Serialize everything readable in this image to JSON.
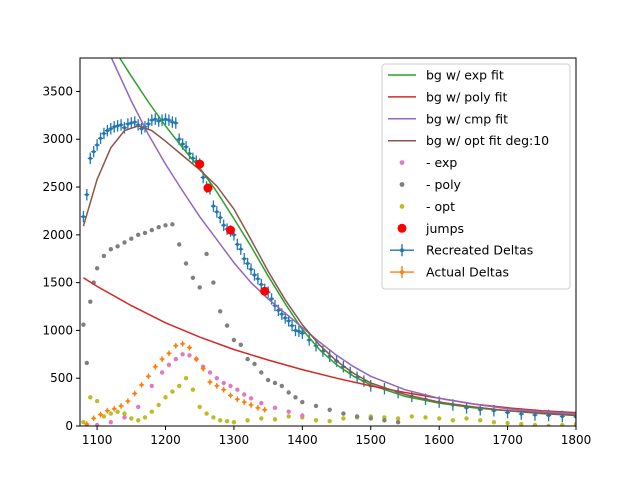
{
  "chart_data": {
    "type": "scatter",
    "title": "",
    "xlabel": "",
    "ylabel": "",
    "xlim": [
      1075,
      1800
    ],
    "ylim": [
      0,
      3850
    ],
    "xticks": [
      1100,
      1200,
      1300,
      1400,
      1500,
      1600,
      1700,
      1800
    ],
    "yticks": [
      0,
      500,
      1000,
      1500,
      2000,
      2500,
      3000,
      3500
    ],
    "grid": false,
    "legend_placement": "top-right",
    "colors": {
      "exp_fit": "#2ca02c",
      "poly_fit": "#d62728",
      "cmp_fit": "#9467bd",
      "opt_fit": "#8c564b",
      "exp_points": "#e377c2",
      "poly_points": "#7f7f7f",
      "opt_points": "#bcbd22",
      "jumps": "#ff0000",
      "recreated": "#1f77b4",
      "actual": "#ff7f0e"
    },
    "legend": [
      {
        "key": "exp_fit",
        "kind": "line",
        "label": "bg w/ exp fit"
      },
      {
        "key": "poly_fit",
        "kind": "line",
        "label": "bg w/ poly fit"
      },
      {
        "key": "cmp_fit",
        "kind": "line",
        "label": "bg w/ cmp fit"
      },
      {
        "key": "opt_fit",
        "kind": "line",
        "label": "bg w/ opt fit deg:10"
      },
      {
        "key": "exp_points",
        "kind": "dot",
        "label": "- exp"
      },
      {
        "key": "poly_points",
        "kind": "dot",
        "label": "- poly"
      },
      {
        "key": "opt_points",
        "kind": "dot",
        "label": "- opt"
      },
      {
        "key": "jumps",
        "kind": "bigdot",
        "label": "jumps"
      },
      {
        "key": "recreated",
        "kind": "errbar",
        "label": "Recreated Deltas"
      },
      {
        "key": "actual",
        "kind": "errbar",
        "label": "Actual Deltas"
      }
    ],
    "series": [
      {
        "key": "exp_fit",
        "type": "line",
        "x": [
          1133,
          1150,
          1175,
          1200,
          1225,
          1250,
          1275,
          1300,
          1325,
          1350,
          1375,
          1400,
          1425,
          1450,
          1475,
          1500,
          1550,
          1600,
          1650,
          1700,
          1750,
          1800
        ],
        "y": [
          3850,
          3660,
          3390,
          3140,
          2910,
          2700,
          2450,
          2170,
          1880,
          1570,
          1280,
          1010,
          800,
          640,
          520,
          430,
          310,
          240,
          190,
          160,
          140,
          125
        ]
      },
      {
        "key": "poly_fit",
        "type": "line",
        "x": [
          1080,
          1100,
          1150,
          1200,
          1250,
          1300,
          1350,
          1400,
          1450,
          1500,
          1550,
          1600,
          1650,
          1700,
          1750,
          1800
        ],
        "y": [
          1550,
          1460,
          1260,
          1080,
          930,
          800,
          690,
          590,
          500,
          420,
          350,
          290,
          230,
          190,
          160,
          140
        ]
      },
      {
        "key": "cmp_fit",
        "type": "line",
        "x": [
          1121,
          1150,
          1175,
          1200,
          1225,
          1250,
          1275,
          1300,
          1325,
          1350,
          1375,
          1400,
          1425,
          1450,
          1475,
          1500,
          1550,
          1600,
          1650,
          1700,
          1750,
          1800
        ],
        "y": [
          3850,
          3400,
          3050,
          2740,
          2460,
          2190,
          1950,
          1710,
          1500,
          1330,
          1180,
          1030,
          880,
          740,
          620,
          520,
          380,
          290,
          230,
          180,
          150,
          130
        ]
      },
      {
        "key": "opt_fit",
        "type": "line",
        "x": [
          1080,
          1100,
          1120,
          1140,
          1160,
          1180,
          1200,
          1225,
          1250,
          1275,
          1300,
          1325,
          1350,
          1375,
          1400,
          1425,
          1450,
          1475,
          1500,
          1550,
          1600,
          1650,
          1700,
          1750,
          1800
        ],
        "y": [
          2090,
          2580,
          2910,
          3090,
          3140,
          3090,
          2980,
          2830,
          2680,
          2510,
          2270,
          1950,
          1620,
          1320,
          1060,
          850,
          680,
          550,
          450,
          330,
          250,
          200,
          160,
          130,
          110
        ]
      },
      {
        "key": "recreated",
        "type": "errorbar",
        "x": [
          1080,
          1085,
          1090,
          1095,
          1100,
          1105,
          1110,
          1115,
          1120,
          1125,
          1130,
          1135,
          1140,
          1145,
          1150,
          1155,
          1160,
          1165,
          1170,
          1175,
          1180,
          1185,
          1190,
          1195,
          1200,
          1205,
          1210,
          1215,
          1220,
          1225,
          1230,
          1235,
          1240,
          1245,
          1250,
          1255,
          1260,
          1265,
          1270,
          1275,
          1280,
          1285,
          1290,
          1295,
          1300,
          1305,
          1310,
          1315,
          1320,
          1325,
          1330,
          1335,
          1340,
          1345,
          1350,
          1355,
          1360,
          1365,
          1370,
          1375,
          1380,
          1385,
          1390,
          1395,
          1400,
          1410,
          1420,
          1430,
          1440,
          1450,
          1460,
          1470,
          1480,
          1490,
          1500,
          1520,
          1540,
          1560,
          1580,
          1600,
          1620,
          1640,
          1660,
          1680,
          1700,
          1720,
          1740,
          1760,
          1780,
          1800
        ],
        "y": [
          2190,
          2420,
          2800,
          2870,
          2940,
          3010,
          3060,
          3090,
          3110,
          3130,
          3140,
          3150,
          3120,
          3160,
          3170,
          3180,
          3150,
          3110,
          3130,
          3160,
          3200,
          3210,
          3190,
          3200,
          3210,
          3200,
          3180,
          3170,
          3000,
          2950,
          2920,
          2850,
          2800,
          2770,
          2740,
          2600,
          2500,
          2480,
          2300,
          2240,
          2180,
          2100,
          2060,
          2040,
          2000,
          1900,
          1850,
          1750,
          1700,
          1640,
          1580,
          1540,
          1480,
          1430,
          1400,
          1330,
          1260,
          1210,
          1170,
          1130,
          1100,
          1050,
          1000,
          990,
          970,
          900,
          840,
          780,
          730,
          680,
          620,
          560,
          510,
          470,
          420,
          390,
          350,
          310,
          280,
          250,
          220,
          190,
          170,
          160,
          140,
          125,
          115,
          110,
          100,
          95
        ],
        "yerr": 60
      },
      {
        "key": "exp_points",
        "type": "scatter",
        "x": [
          1085,
          1100,
          1120,
          1140,
          1160,
          1180,
          1195,
          1205,
          1215,
          1225,
          1235,
          1245,
          1255,
          1265,
          1275,
          1285,
          1295,
          1305,
          1315,
          1325,
          1340,
          1360,
          1380,
          1400
        ],
        "y": [
          0,
          10,
          40,
          90,
          200,
          420,
          560,
          640,
          700,
          750,
          740,
          700,
          620,
          560,
          500,
          450,
          420,
          380,
          330,
          290,
          240,
          190,
          150,
          110
        ]
      },
      {
        "key": "poly_points",
        "type": "scatter",
        "x": [
          1080,
          1085,
          1090,
          1095,
          1100,
          1110,
          1120,
          1130,
          1140,
          1150,
          1160,
          1170,
          1180,
          1190,
          1200,
          1210,
          1220,
          1230,
          1240,
          1250,
          1260,
          1270,
          1280,
          1290,
          1300,
          1310,
          1320,
          1330,
          1340,
          1350,
          1360,
          1370,
          1380,
          1390,
          1400,
          1420,
          1440,
          1460,
          1480,
          1500,
          1520,
          1540
        ],
        "y": [
          1060,
          660,
          1300,
          1500,
          1650,
          1780,
          1850,
          1880,
          1920,
          1960,
          2000,
          2020,
          2050,
          2080,
          2100,
          2110,
          1900,
          1700,
          1550,
          1450,
          1800,
          1500,
          1200,
          1050,
          900,
          850,
          700,
          650,
          560,
          480,
          450,
          420,
          350,
          300,
          250,
          210,
          170,
          130,
          100,
          80,
          60,
          40
        ]
      },
      {
        "key": "opt_points",
        "type": "scatter",
        "x": [
          1080,
          1090,
          1100,
          1110,
          1120,
          1130,
          1140,
          1150,
          1160,
          1170,
          1180,
          1190,
          1200,
          1210,
          1220,
          1230,
          1240,
          1250,
          1260,
          1270,
          1280,
          1290,
          1300,
          1320,
          1340,
          1360,
          1380,
          1400,
          1420,
          1440,
          1460,
          1480,
          1500,
          1520,
          1540,
          1560,
          1580,
          1600,
          1620,
          1640,
          1660,
          1680,
          1700,
          1720,
          1740,
          1760,
          1780,
          1800
        ],
        "y": [
          40,
          300,
          260,
          100,
          130,
          150,
          130,
          80,
          60,
          90,
          150,
          220,
          300,
          360,
          420,
          500,
          380,
          200,
          130,
          90,
          60,
          50,
          40,
          60,
          80,
          70,
          100,
          90,
          60,
          50,
          80,
          90,
          100,
          90,
          80,
          100,
          90,
          80,
          60,
          80,
          60,
          40,
          30,
          20,
          10,
          0,
          10,
          20
        ]
      },
      {
        "key": "actual",
        "type": "errorbar",
        "x": [
          1085,
          1095,
          1105,
          1115,
          1125,
          1135,
          1145,
          1155,
          1165,
          1175,
          1185,
          1195,
          1205,
          1215,
          1225,
          1235,
          1245,
          1255,
          1265,
          1275,
          1285,
          1295,
          1305,
          1315,
          1325,
          1335,
          1345
        ],
        "y": [
          20,
          80,
          120,
          160,
          180,
          210,
          260,
          340,
          430,
          520,
          620,
          700,
          760,
          840,
          860,
          820,
          700,
          600,
          460,
          420,
          380,
          320,
          280,
          250,
          220,
          190,
          170
        ],
        "yerr": 30
      },
      {
        "key": "jumps",
        "type": "scatter",
        "x": [
          1250,
          1262,
          1295,
          1345
        ],
        "y": [
          2740,
          2490,
          2050,
          1410
        ]
      }
    ]
  }
}
